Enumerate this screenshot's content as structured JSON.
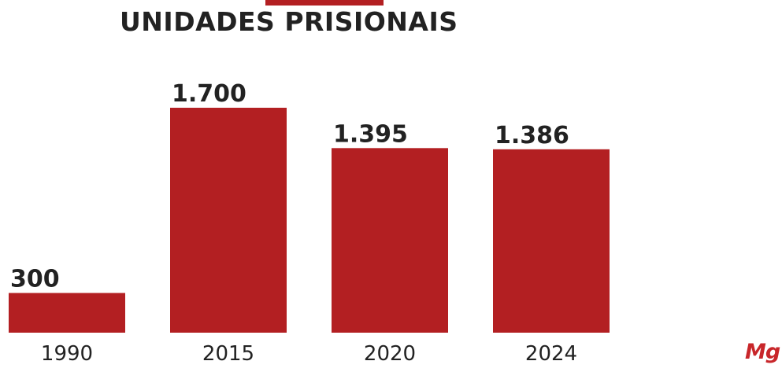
{
  "chart_data": {
    "type": "bar",
    "title": "UNIDADES PRISIONAIS",
    "categories": [
      "1990",
      "2015",
      "2020",
      "2024"
    ],
    "values": [
      300,
      1700,
      1395,
      1386
    ],
    "value_labels": [
      "300",
      "1.700",
      "1.395",
      "1.386"
    ],
    "xlabel": "",
    "ylabel": "",
    "ylim": [
      0,
      1700
    ],
    "grid": false,
    "legend": "none",
    "colors": {
      "bar": "#b31f22",
      "text": "#222222"
    }
  },
  "logo": {
    "text": "Mg"
  }
}
